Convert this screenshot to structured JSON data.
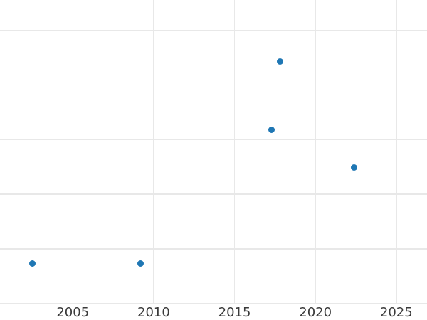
{
  "chart_data": {
    "type": "scatter",
    "title": "",
    "xlabel": "",
    "ylabel": "",
    "grid": true,
    "legend": false,
    "background_color": "#ffffff",
    "grid_color": "#e8e8e8",
    "tick_label_color": "#3a3a3a",
    "marker_diameter_px": 9,
    "x_ticks": [
      {
        "value": 2005,
        "label": "2005"
      },
      {
        "value": 2010,
        "label": "2010"
      },
      {
        "value": 2015,
        "label": "2015"
      },
      {
        "value": 2020,
        "label": "2020"
      },
      {
        "value": 2025,
        "label": "2025"
      }
    ],
    "y_tick_labels_visible": false,
    "y_unit": "gridline-intervals above bottom gridline (y-axis labels not visible in cropped view)",
    "y_gridlines_units": [
      0,
      1,
      2,
      3,
      4,
      5
    ],
    "x_range_visible": [
      2000.5,
      2026.9
    ],
    "y_range_visible_units": [
      -0.3,
      5.55
    ],
    "series": [
      {
        "name": "series-1",
        "marker_color": "#1f77b4",
        "points": [
          {
            "x": 2002.5,
            "y": 0.73
          },
          {
            "x": 2009.2,
            "y": 0.74
          },
          {
            "x": 2017.3,
            "y": 3.18
          },
          {
            "x": 2017.8,
            "y": 4.43
          },
          {
            "x": 2022.4,
            "y": 2.49
          }
        ]
      }
    ]
  }
}
